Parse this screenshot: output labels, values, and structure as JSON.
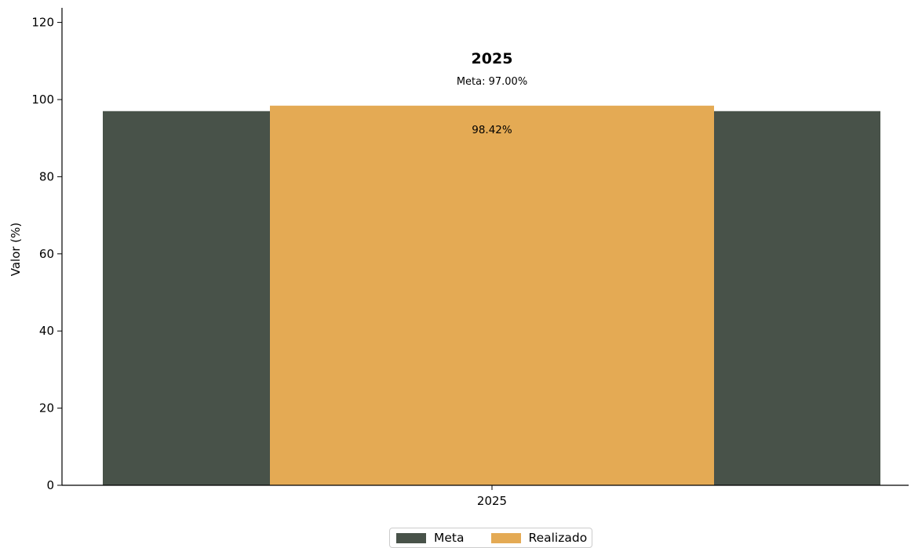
{
  "chart_data": {
    "type": "bar",
    "title": "2025",
    "subtitle": "Meta: 97.00%",
    "ylabel": "Valor (%)",
    "xlabel": "",
    "categories": [
      "2025"
    ],
    "ylim": [
      0,
      120
    ],
    "yticks": [
      0,
      20,
      40,
      60,
      80,
      100,
      120
    ],
    "series": [
      {
        "name": "Meta",
        "values": [
          97.0
        ],
        "color": "#485249"
      },
      {
        "name": "Realizado",
        "values": [
          98.42
        ],
        "color": "#e4aa54",
        "data_label": "98.42%"
      }
    ],
    "legend": {
      "position": "bottom-center"
    },
    "grid": false
  }
}
